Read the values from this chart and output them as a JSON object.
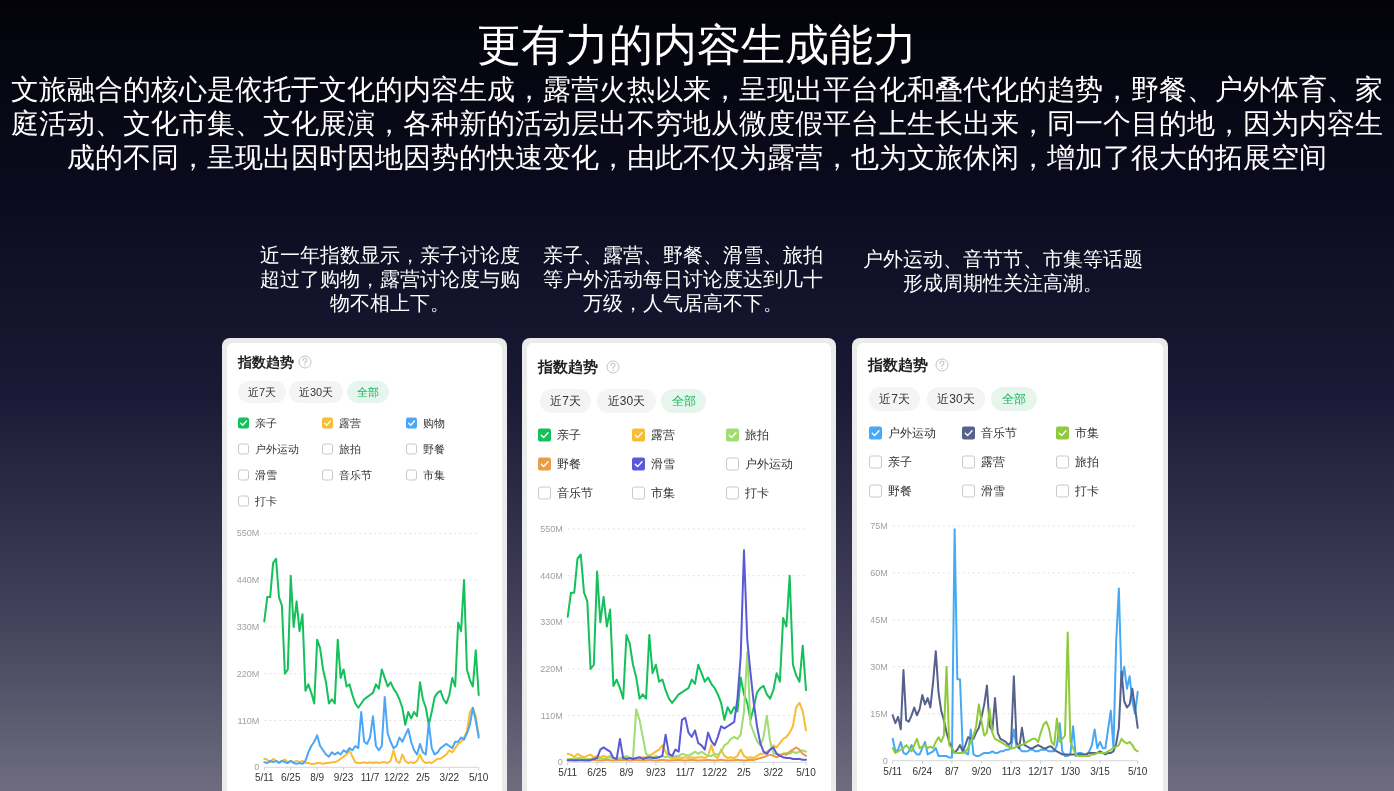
{
  "chart_data": [
    {
      "type": "other",
      "title": "更有力的内容生成能力",
      "subtitle": "文旅融合的核心是依托于文化的内容生成，露营火热以来，呈现出平台化和叠代化的趋势，野餐、户外体育、家庭活动、文化市集、文化展演，各种新的活动层出不穷地从微度假平台上生长出来，同一个目的地，因为内容生成的不同，呈现出因时因地因势的快速变化，由此不仅为露营，也为文旅休闲，增加了很大的拓展空间"
    },
    {
      "type": "line",
      "title": "指数趋势",
      "subtitle": "近一年指数显示，亲子讨论度超过了购物，露营讨论度与购物不相上下。",
      "annotations": [
        "近7天",
        "近30天",
        "全部",
        "户外运动",
        "旅拍",
        "野餐",
        "滑雪",
        "音乐节",
        "市集",
        "打卡"
      ],
      "legend": "top",
      "grid": "y",
      "categories": [
        "5/11",
        null,
        null,
        null,
        null,
        null,
        null,
        null,
        null,
        "6/25",
        null,
        null,
        null,
        null,
        null,
        null,
        null,
        null,
        "8/9",
        null,
        null,
        null,
        null,
        null,
        null,
        null,
        null,
        "9/23",
        null,
        null,
        null,
        null,
        null,
        null,
        null,
        null,
        "11/7",
        null,
        null,
        null,
        null,
        null,
        null,
        null,
        null,
        "12/22",
        null,
        null,
        null,
        null,
        null,
        null,
        null,
        null,
        "2/5",
        null,
        null,
        null,
        null,
        null,
        null,
        null,
        null,
        "3/22",
        null,
        null,
        null,
        null,
        null,
        null,
        null,
        null,
        null,
        "5/10"
      ],
      "ylim": [
        0,
        550
      ],
      "yticks": [
        {
          "value": 0,
          "label": "0"
        },
        {
          "value": 110,
          "label": "110M"
        },
        {
          "value": 220,
          "label": "220M"
        },
        {
          "value": 330,
          "label": "330M"
        },
        {
          "value": 440,
          "label": "440M"
        },
        {
          "value": 550,
          "label": "550M"
        }
      ],
      "series": [
        {
          "name": "亲子",
          "color": "#14c05a",
          "values": [
            343,
            400,
            400,
            480,
            490,
            400,
            380,
            220,
            230,
            450,
            330,
            390,
            320,
            360,
            180,
            195,
            175,
            150,
            300,
            280,
            230,
            200,
            150,
            160,
            150,
            300,
            210,
            230,
            190,
            195,
            170,
            150,
            140,
            150,
            160,
            165,
            170,
            175,
            195,
            185,
            230,
            210,
            190,
            200,
            185,
            175,
            160,
            140,
            100,
            130,
            115,
            130,
            120,
            200,
            160,
            140,
            100,
            130,
            165,
            175,
            180,
            160,
            150,
            170,
            210,
            190,
            340,
            320,
            440,
            230,
            205,
            190,
            275,
            170
          ]
        },
        {
          "name": "露营",
          "color": "#f9bc33",
          "values": [
            20,
            18,
            12,
            20,
            15,
            12,
            15,
            18,
            12,
            15,
            12,
            15,
            12,
            15,
            10,
            10,
            8,
            8,
            10,
            10,
            8,
            10,
            10,
            12,
            12,
            15,
            20,
            25,
            30,
            40,
            25,
            12,
            10,
            10,
            12,
            10,
            12,
            10,
            12,
            10,
            12,
            12,
            10,
            15,
            40,
            15,
            10,
            30,
            15,
            10,
            12,
            10,
            15,
            30,
            15,
            10,
            12,
            10,
            15,
            20,
            20,
            25,
            30,
            40,
            35,
            45,
            55,
            60,
            70,
            85,
            130,
            140,
            120,
            75
          ]
        },
        {
          "name": "购物",
          "color": "#4aa7f7",
          "values": [
            12,
            10,
            15,
            12,
            15,
            10,
            15,
            12,
            10,
            15,
            10,
            8,
            10,
            8,
            15,
            35,
            50,
            60,
            75,
            50,
            40,
            30,
            25,
            35,
            30,
            35,
            30,
            40,
            35,
            45,
            40,
            50,
            45,
            130,
            60,
            55,
            70,
            120,
            50,
            40,
            50,
            165,
            80,
            60,
            45,
            50,
            70,
            60,
            75,
            90,
            60,
            40,
            30,
            55,
            35,
            30,
            105,
            45,
            30,
            35,
            45,
            50,
            55,
            50,
            45,
            60,
            60,
            70,
            65,
            80,
            100,
            140,
            110,
            70
          ]
        }
      ]
    },
    {
      "type": "line",
      "title": "指数趋势",
      "subtitle": "亲子、露营、野餐、滑雪、旅拍等户外活动每日讨论度达到几十万级，人气居高不下。",
      "annotations": [
        "近7天",
        "近30天",
        "全部",
        "户外运动",
        "音乐节",
        "市集",
        "打卡"
      ],
      "legend": "top",
      "grid": "y",
      "categories": [
        "5/11",
        null,
        null,
        null,
        null,
        null,
        null,
        null,
        null,
        "6/25",
        null,
        null,
        null,
        null,
        null,
        null,
        null,
        null,
        "8/9",
        null,
        null,
        null,
        null,
        null,
        null,
        null,
        null,
        "9/23",
        null,
        null,
        null,
        null,
        null,
        null,
        null,
        null,
        "11/7",
        null,
        null,
        null,
        null,
        null,
        null,
        null,
        null,
        "12/22",
        null,
        null,
        null,
        null,
        null,
        null,
        null,
        null,
        "2/5",
        null,
        null,
        null,
        null,
        null,
        null,
        null,
        null,
        "3/22",
        null,
        null,
        null,
        null,
        null,
        null,
        null,
        null,
        null,
        "5/10"
      ],
      "ylim": [
        0,
        550
      ],
      "yticks": [
        {
          "value": 0,
          "label": "0"
        },
        {
          "value": 110,
          "label": "110M"
        },
        {
          "value": 220,
          "label": "220M"
        },
        {
          "value": 330,
          "label": "330M"
        },
        {
          "value": 440,
          "label": "440M"
        },
        {
          "value": 550,
          "label": "550M"
        }
      ],
      "series": [
        {
          "name": "亲子",
          "color": "#14c05a",
          "values": [
            343,
            400,
            400,
            480,
            490,
            400,
            380,
            220,
            230,
            450,
            330,
            390,
            320,
            360,
            180,
            195,
            175,
            150,
            300,
            280,
            230,
            200,
            150,
            160,
            150,
            300,
            210,
            230,
            190,
            195,
            170,
            150,
            140,
            150,
            160,
            165,
            170,
            175,
            195,
            185,
            230,
            210,
            190,
            200,
            185,
            175,
            160,
            140,
            100,
            130,
            115,
            130,
            120,
            200,
            160,
            140,
            100,
            130,
            165,
            175,
            180,
            160,
            150,
            170,
            210,
            190,
            340,
            320,
            440,
            230,
            205,
            190,
            275,
            170
          ]
        },
        {
          "name": "露营",
          "color": "#f9bc33",
          "values": [
            20,
            18,
            12,
            20,
            15,
            12,
            15,
            18,
            12,
            15,
            12,
            15,
            12,
            15,
            10,
            10,
            8,
            8,
            10,
            10,
            8,
            10,
            10,
            12,
            12,
            15,
            20,
            25,
            30,
            40,
            25,
            12,
            10,
            10,
            12,
            10,
            12,
            10,
            12,
            10,
            12,
            12,
            10,
            15,
            40,
            15,
            10,
            30,
            15,
            10,
            12,
            10,
            15,
            30,
            15,
            10,
            12,
            10,
            15,
            20,
            20,
            25,
            30,
            40,
            35,
            45,
            55,
            60,
            70,
            85,
            130,
            140,
            120,
            75
          ]
        },
        {
          "name": "旅拍",
          "color": "#9fdd72",
          "values": [
            8,
            8,
            8,
            10,
            10,
            8,
            8,
            8,
            10,
            10,
            10,
            8,
            10,
            12,
            10,
            8,
            10,
            12,
            15,
            10,
            10,
            125,
            100,
            60,
            20,
            15,
            12,
            15,
            12,
            15,
            12,
            15,
            12,
            15,
            15,
            20,
            18,
            15,
            20,
            25,
            20,
            25,
            20,
            15,
            15,
            20,
            18,
            25,
            40,
            45,
            55,
            60,
            55,
            65,
            120,
            260,
            90,
            70,
            50,
            40,
            60,
            110,
            50,
            20,
            20,
            18,
            20,
            22,
            20,
            25,
            22,
            25,
            28,
            25
          ]
        },
        {
          "name": "野餐",
          "color": "#eb9c48",
          "values": [
            5,
            6,
            4,
            5,
            6,
            5,
            4,
            5,
            6,
            5,
            4,
            5,
            6,
            5,
            4,
            5,
            5,
            6,
            5,
            4,
            5,
            6,
            5,
            4,
            5,
            6,
            5,
            4,
            5,
            6,
            5,
            4,
            5,
            5,
            6,
            5,
            4,
            5,
            6,
            5,
            4,
            5,
            5,
            6,
            5,
            4,
            5,
            6,
            5,
            4,
            5,
            5,
            6,
            5,
            4,
            5,
            6,
            5,
            8,
            10,
            12,
            15,
            18,
            15,
            12,
            15,
            20,
            18,
            25,
            30,
            35,
            30,
            20,
            15
          ]
        },
        {
          "name": "滑雪",
          "color": "#5a5ad8",
          "values": [
            5,
            5,
            5,
            5,
            5,
            5,
            5,
            5,
            8,
            10,
            30,
            35,
            30,
            25,
            10,
            8,
            55,
            10,
            8,
            10,
            8,
            10,
            12,
            8,
            10,
            12,
            10,
            10,
            12,
            15,
            65,
            20,
            15,
            30,
            25,
            100,
            105,
            70,
            60,
            75,
            45,
            40,
            30,
            70,
            50,
            40,
            60,
            85,
            80,
            85,
            90,
            95,
            150,
            250,
            500,
            290,
            210,
            140,
            85,
            45,
            25,
            20,
            30,
            35,
            20,
            15,
            12,
            10,
            10,
            8,
            8,
            8,
            6,
            6
          ]
        }
      ]
    },
    {
      "type": "line",
      "title": "指数趋势",
      "subtitle": "户外运动、音节节、市集等话题形成周期性关注高潮。",
      "annotations": [
        "近7天",
        "近30天",
        "全部",
        "亲子",
        "露营",
        "旅拍",
        "野餐",
        "滑雪",
        "打卡"
      ],
      "legend": "top",
      "grid": "y",
      "categories": [
        "5/11",
        null,
        null,
        null,
        null,
        null,
        null,
        null,
        null,
        null,
        null,
        "6/24",
        null,
        null,
        null,
        null,
        null,
        null,
        null,
        null,
        null,
        null,
        "8/7",
        null,
        null,
        null,
        null,
        null,
        null,
        null,
        null,
        null,
        null,
        "9/20",
        null,
        null,
        null,
        null,
        null,
        null,
        null,
        null,
        null,
        null,
        "11/3",
        null,
        null,
        null,
        null,
        null,
        null,
        null,
        null,
        null,
        null,
        "12/17",
        null,
        null,
        null,
        null,
        null,
        null,
        null,
        null,
        null,
        null,
        "1/30",
        null,
        null,
        null,
        null,
        null,
        null,
        null,
        null,
        null,
        null,
        "3/15",
        null,
        null,
        null,
        null,
        null,
        null,
        null,
        null,
        null,
        null,
        null,
        null,
        null,
        "5/10"
      ],
      "ylim": [
        0,
        75
      ],
      "yticks": [
        {
          "value": 0,
          "label": "0"
        },
        {
          "value": 15,
          "label": "15M"
        },
        {
          "value": 30,
          "label": "30M"
        },
        {
          "value": 45,
          "label": "45M"
        },
        {
          "value": 60,
          "label": "60M"
        },
        {
          "value": 75,
          "label": "75M"
        }
      ],
      "series": [
        {
          "name": "户外运动",
          "color": "#45a9f5",
          "values": [
            7,
            3,
            3.5,
            6,
            2.5,
            2,
            3,
            5,
            3,
            2,
            2,
            4,
            6,
            2,
            2.5,
            3,
            4,
            1.5,
            1.5,
            1.5,
            1.5,
            1,
            1,
            74,
            26,
            26,
            4,
            2.5,
            2,
            10,
            2,
            1.5,
            1.5,
            2,
            2.5,
            2.5,
            2.5,
            3,
            2.5,
            2.5,
            3,
            3,
            3.5,
            3.5,
            4,
            10,
            4.5,
            4,
            3,
            3,
            3,
            3.5,
            3.5,
            3,
            3,
            3.5,
            3.5,
            3.5,
            3,
            3,
            3,
            5,
            12,
            3,
            1.5,
            1.5,
            2,
            11,
            1.5,
            2.5,
            2.5,
            2,
            2,
            3,
            5,
            10,
            4,
            6,
            4,
            4,
            10,
            16,
            4,
            38,
            55,
            25,
            30,
            23,
            27,
            19,
            15,
            22
          ]
        },
        {
          "name": "音乐节",
          "color": "#56628c",
          "values": [
            14.5,
            12,
            14,
            10,
            29,
            13,
            12.5,
            14.5,
            17,
            14.5,
            16.5,
            21,
            18,
            20,
            17,
            25,
            35,
            22,
            16,
            13,
            9,
            6,
            4,
            2.5,
            3.5,
            5,
            3,
            5,
            7.5,
            7,
            7,
            9,
            10.5,
            14,
            18,
            24,
            11,
            9.5,
            20,
            9,
            7,
            6.5,
            6,
            5,
            6,
            27,
            6,
            4,
            10.5,
            5,
            4.5,
            4,
            4,
            4.5,
            5,
            4.5,
            4,
            4,
            4.5,
            4.5,
            3.5,
            3,
            2.5,
            2,
            2,
            2,
            2,
            2,
            2,
            2,
            2,
            2,
            2,
            2.5,
            2.5,
            2.5,
            2.5,
            3,
            2.5,
            2,
            2.5,
            2.5,
            3,
            5.5,
            10.5,
            28.5,
            19,
            17,
            18,
            23,
            17,
            10.5
          ]
        },
        {
          "name": "市集",
          "color": "#8fca3a",
          "values": [
            4,
            2.5,
            3,
            3.5,
            4,
            5,
            4,
            3,
            5,
            7,
            4,
            4.5,
            5,
            4,
            4.5,
            4,
            6,
            7.5,
            6,
            8,
            30,
            5,
            4,
            2.5,
            2.5,
            2.5,
            2.5,
            3,
            4,
            6,
            8,
            11,
            18,
            12.5,
            8,
            9,
            16.5,
            9,
            7,
            6.5,
            6,
            5.5,
            5,
            4.5,
            4,
            4,
            4.5,
            5,
            5,
            5.5,
            6,
            6.5,
            7,
            7,
            6,
            9,
            11.5,
            12.5,
            10.5,
            6,
            5,
            13.5,
            6,
            7,
            8,
            41,
            6,
            4,
            2,
            1.5,
            1.5,
            1.5,
            1.5,
            1.5,
            2,
            2,
            2.5,
            2.5,
            2.5,
            2.5,
            3,
            3.5,
            4,
            4.5,
            5,
            7,
            6,
            5.5,
            6,
            5,
            3.5,
            3
          ]
        }
      ]
    }
  ]
}
